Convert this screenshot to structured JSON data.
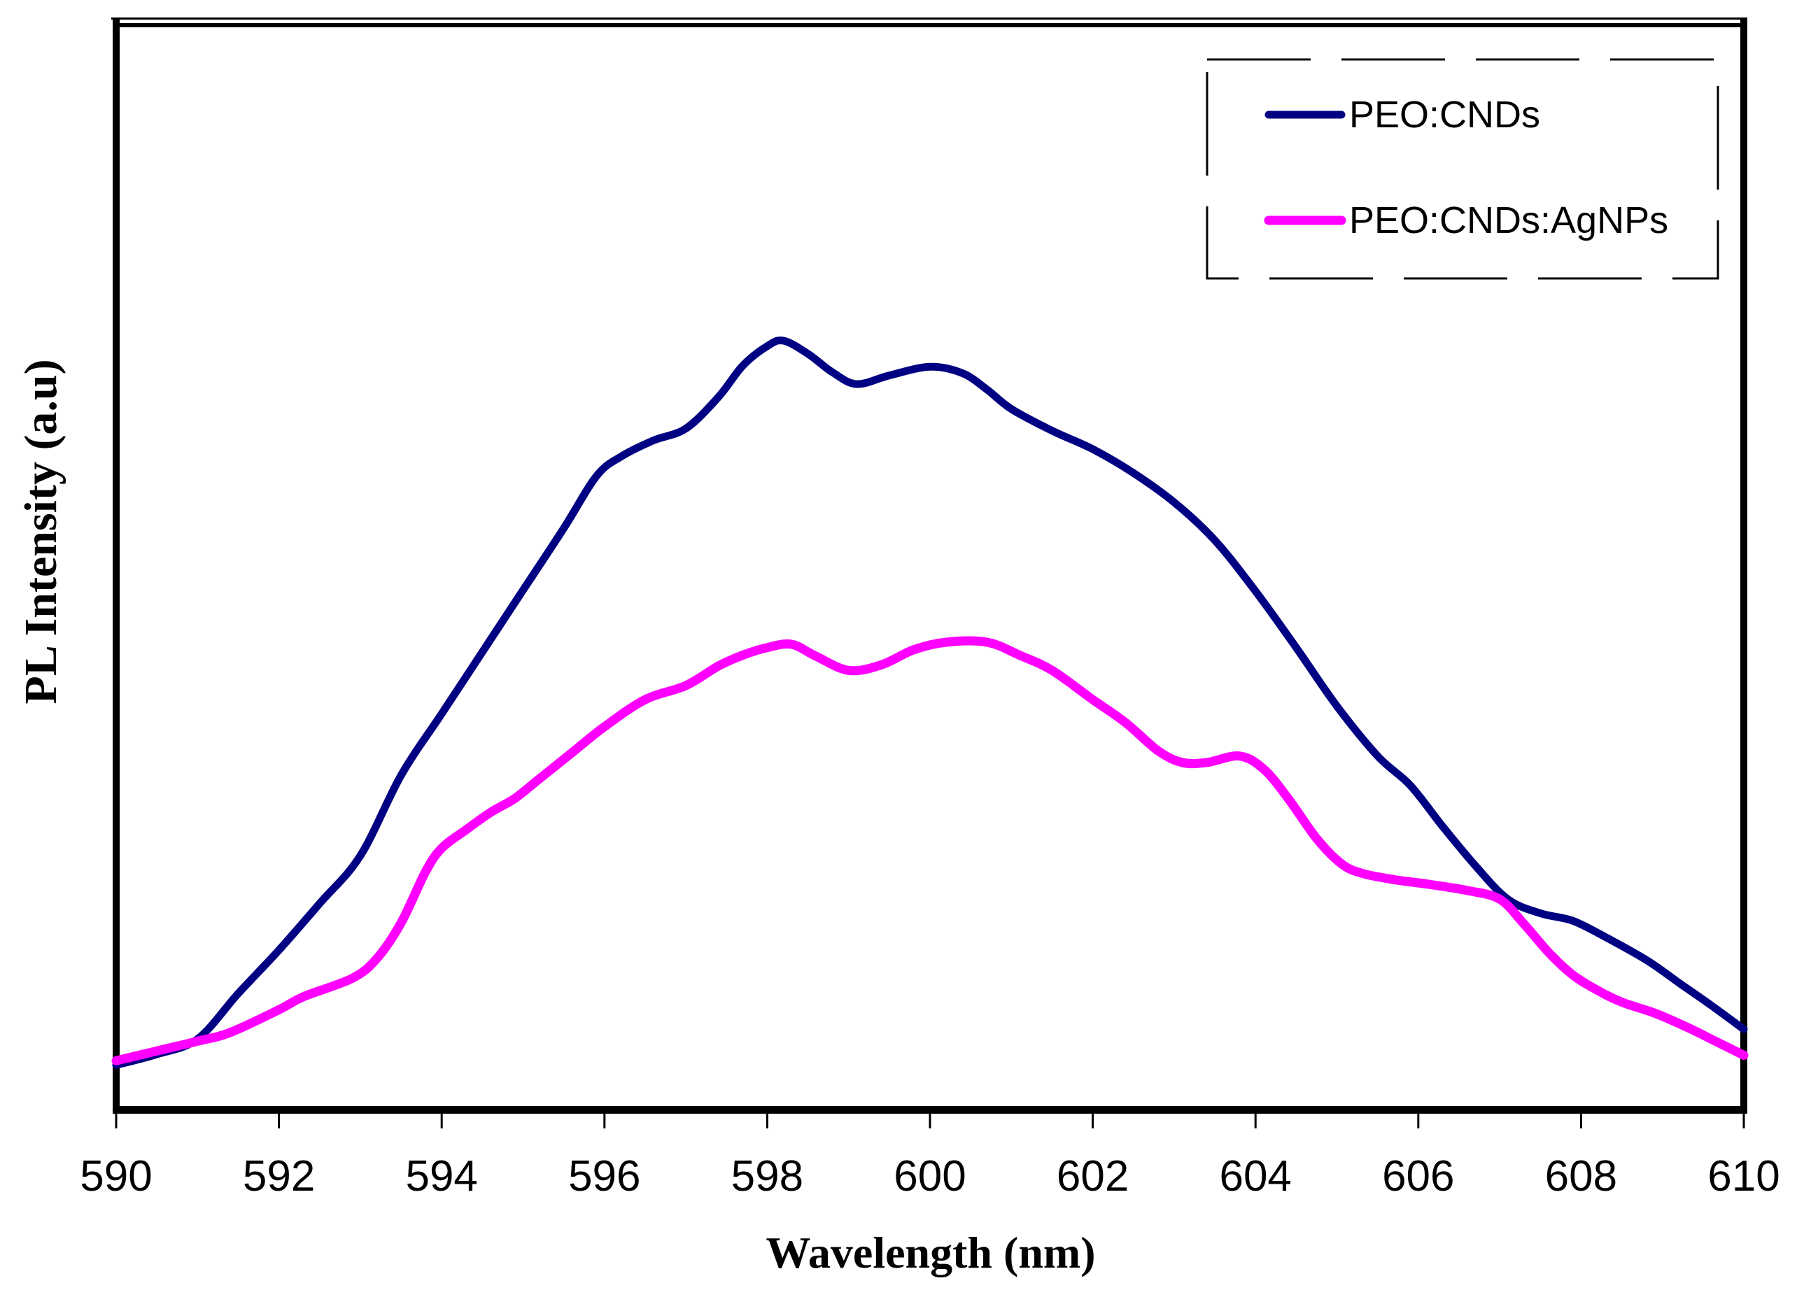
{
  "chart_data": {
    "type": "line",
    "title": "",
    "xlabel": "Wavelength (nm)",
    "ylabel": "PL Intensity (a.u)",
    "x_ticks": [
      "590",
      "592",
      "594",
      "596",
      "598",
      "600",
      "602",
      "604",
      "606",
      "608",
      "610"
    ],
    "xlim": [
      590,
      610
    ],
    "ylim": [
      0,
      100
    ],
    "y_axis_numbers_shown": false,
    "grid": false,
    "axis_color": "#000000",
    "background_color": "#ffffff",
    "legend": {
      "position": "top-right",
      "border_style": "dashed",
      "border_color": "#000000"
    },
    "series": [
      {
        "name": "PEO:CNDs",
        "color": "#000082",
        "line_width": 11,
        "points": [
          [
            590,
            4.1
          ],
          [
            590.5,
            5.1
          ],
          [
            591,
            6.5
          ],
          [
            591.5,
            10.7
          ],
          [
            592,
            14.7
          ],
          [
            592.5,
            19.0
          ],
          [
            593,
            23.4
          ],
          [
            593.5,
            30.8
          ],
          [
            594,
            36.5
          ],
          [
            594.5,
            42.2
          ],
          [
            595,
            47.9
          ],
          [
            595.5,
            53.6
          ],
          [
            595.9,
            58.4
          ],
          [
            596.2,
            60.2
          ],
          [
            596.6,
            61.7
          ],
          [
            597,
            62.8
          ],
          [
            597.4,
            65.7
          ],
          [
            597.7,
            68.6
          ],
          [
            598,
            70.4
          ],
          [
            598.2,
            70.9
          ],
          [
            598.5,
            69.7
          ],
          [
            598.8,
            68.0
          ],
          [
            599.1,
            66.9
          ],
          [
            599.5,
            67.7
          ],
          [
            600,
            68.5
          ],
          [
            600.4,
            67.9
          ],
          [
            600.7,
            66.4
          ],
          [
            601,
            64.6
          ],
          [
            601.5,
            62.6
          ],
          [
            602,
            60.9
          ],
          [
            602.5,
            58.7
          ],
          [
            603,
            56.0
          ],
          [
            603.5,
            52.5
          ],
          [
            604,
            47.8
          ],
          [
            604.5,
            42.6
          ],
          [
            605,
            37.2
          ],
          [
            605.5,
            32.6
          ],
          [
            605.9,
            29.9
          ],
          [
            606.3,
            26.1
          ],
          [
            606.7,
            22.5
          ],
          [
            607.1,
            19.4
          ],
          [
            607.5,
            18.1
          ],
          [
            607.9,
            17.4
          ],
          [
            608.3,
            15.9
          ],
          [
            608.8,
            13.8
          ],
          [
            609.2,
            11.7
          ],
          [
            609.6,
            9.6
          ],
          [
            610,
            7.4
          ]
        ]
      },
      {
        "name": "PEO:CNDs:AgNPs",
        "color": "#FF00FF",
        "line_width": 13,
        "points": [
          [
            590,
            4.5
          ],
          [
            590.5,
            5.4
          ],
          [
            591,
            6.3
          ],
          [
            591.4,
            7.1
          ],
          [
            592,
            9.2
          ],
          [
            592.3,
            10.4
          ],
          [
            592.9,
            12.1
          ],
          [
            593.2,
            13.9
          ],
          [
            593.5,
            17.2
          ],
          [
            593.8,
            21.9
          ],
          [
            594,
            24.1
          ],
          [
            594.3,
            25.8
          ],
          [
            594.6,
            27.4
          ],
          [
            594.9,
            28.7
          ],
          [
            595.2,
            30.5
          ],
          [
            595.6,
            32.9
          ],
          [
            596,
            35.3
          ],
          [
            596.5,
            37.8
          ],
          [
            597,
            39.1
          ],
          [
            597.4,
            40.9
          ],
          [
            597.7,
            41.9
          ],
          [
            598,
            42.6
          ],
          [
            598.3,
            42.9
          ],
          [
            598.6,
            41.8
          ],
          [
            599,
            40.5
          ],
          [
            599.4,
            41.0
          ],
          [
            599.8,
            42.4
          ],
          [
            600.2,
            43.1
          ],
          [
            600.7,
            43.1
          ],
          [
            601.1,
            41.9
          ],
          [
            601.5,
            40.5
          ],
          [
            602,
            37.8
          ],
          [
            602.4,
            35.7
          ],
          [
            602.8,
            33.1
          ],
          [
            603.1,
            32.0
          ],
          [
            603.4,
            32.0
          ],
          [
            603.8,
            32.6
          ],
          [
            604.1,
            31.4
          ],
          [
            604.4,
            28.7
          ],
          [
            604.75,
            25.0
          ],
          [
            605.05,
            22.7
          ],
          [
            605.3,
            21.8
          ],
          [
            605.7,
            21.2
          ],
          [
            606.1,
            20.8
          ],
          [
            606.6,
            20.2
          ],
          [
            607,
            19.4
          ],
          [
            607.3,
            17.1
          ],
          [
            607.6,
            14.5
          ],
          [
            607.9,
            12.4
          ],
          [
            608.2,
            11.0
          ],
          [
            608.5,
            9.9
          ],
          [
            608.9,
            8.9
          ],
          [
            609.3,
            7.6
          ],
          [
            609.65,
            6.3
          ],
          [
            610,
            5.0
          ]
        ]
      }
    ]
  }
}
